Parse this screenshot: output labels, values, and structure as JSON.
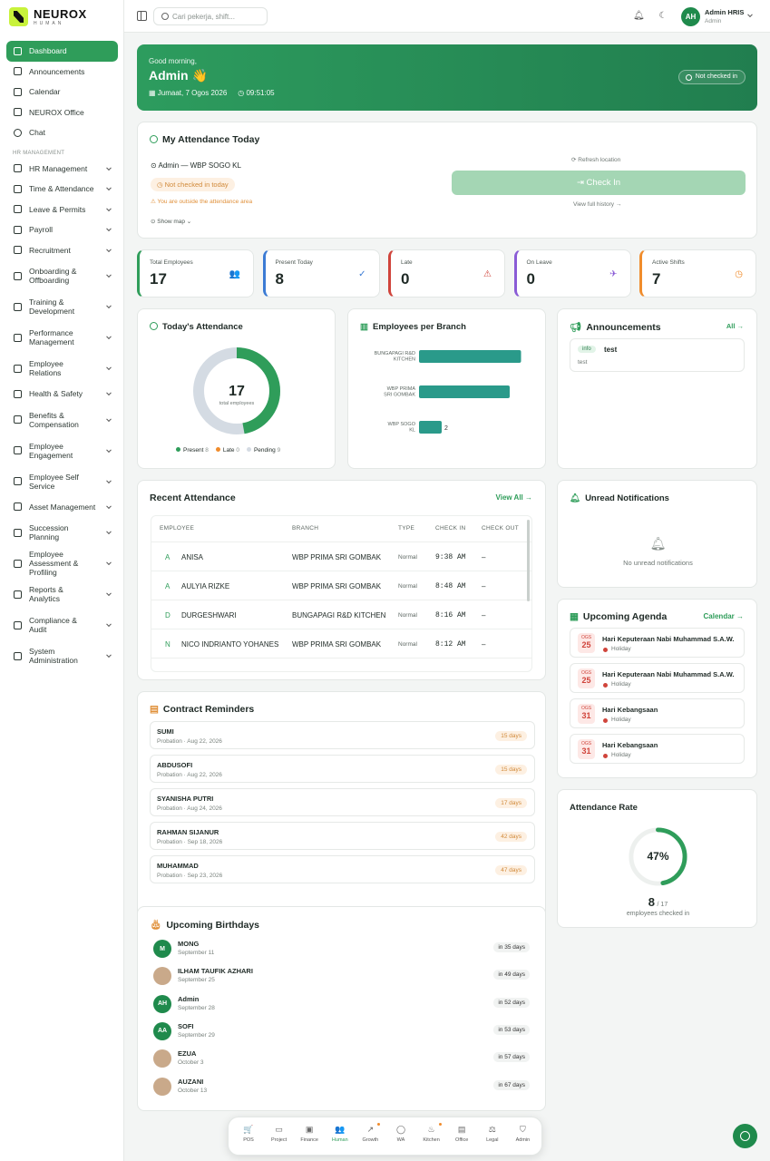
{
  "brand": {
    "name": "NEUROX",
    "sub": "HUMAN"
  },
  "sidebar": {
    "section_label": "HR MANAGEMENT",
    "top_items": [
      {
        "label": "Dashboard"
      },
      {
        "label": "Announcements"
      },
      {
        "label": "Calendar"
      },
      {
        "label": "NEUROX Office"
      },
      {
        "label": "Chat"
      }
    ],
    "items": [
      {
        "label": "HR Management"
      },
      {
        "label": "Time & Attendance"
      },
      {
        "label": "Leave & Permits"
      },
      {
        "label": "Payroll"
      },
      {
        "label": "Recruitment"
      },
      {
        "label": "Onboarding & Offboarding"
      },
      {
        "label": "Training & Development"
      },
      {
        "label": "Performance Management"
      },
      {
        "label": "Employee Relations"
      },
      {
        "label": "Health & Safety"
      },
      {
        "label": "Benefits & Compensation"
      },
      {
        "label": "Employee Engagement"
      },
      {
        "label": "Employee Self Service"
      },
      {
        "label": "Asset Management"
      },
      {
        "label": "Succession Planning"
      },
      {
        "label": "Employee Assessment & Profiling"
      },
      {
        "label": "Reports & Analytics"
      },
      {
        "label": "Compliance & Audit"
      },
      {
        "label": "System Administration"
      }
    ]
  },
  "topbar": {
    "search_placeholder": "Cari pekerja, shift...",
    "avatar_initials": "AH",
    "user_name": "Admin HRIS",
    "user_role": "Admin"
  },
  "hero": {
    "greeting": "Good morning,",
    "name": "Admin 👋",
    "date": "Jumaat, 7 Ogos 2026",
    "time": "09:51:05",
    "status": "Not checked in"
  },
  "attendance": {
    "title": "My Attendance Today",
    "location": "Admin — WBP SOGO KL",
    "status": "Not checked in today",
    "warning": "You are outside the attendance area",
    "show_map": "Show map",
    "refresh": "Refresh location",
    "check_in": "Check In",
    "history": "View full history →"
  },
  "stats": [
    {
      "label": "Total Employees",
      "value": "17",
      "color": "#2f9d5a"
    },
    {
      "label": "Present Today",
      "value": "8",
      "color": "#3b7bd4"
    },
    {
      "label": "Late",
      "value": "0",
      "color": "#d0443b"
    },
    {
      "label": "On Leave",
      "value": "0",
      "color": "#8a5cd6"
    },
    {
      "label": "Active Shifts",
      "value": "7",
      "color": "#f08c2c"
    }
  ],
  "todays_attendance": {
    "title": "Today's Attendance",
    "total": "17",
    "total_label": "total employees",
    "legend": [
      {
        "label": "Present",
        "value": "8",
        "color": "#2f9d5a"
      },
      {
        "label": "Late",
        "value": "0",
        "color": "#f08c2c"
      },
      {
        "label": "Pending",
        "value": "9",
        "color": "#d4dbe3"
      }
    ]
  },
  "chart_data": {
    "type": "bar",
    "title": "Employees per Branch",
    "orientation": "horizontal",
    "categories": [
      "BUNGAPAGI R&D KITCHEN",
      "WBP PRIMA SRI GOMBAK",
      "WBP SOGO KL"
    ],
    "values": [
      9,
      8,
      2
    ],
    "value_labels": [
      "",
      "",
      "2"
    ],
    "color": "#2a9a8a"
  },
  "announcements": {
    "title": "Announcements",
    "all_link": "All →",
    "items": [
      {
        "badge": "info",
        "title": "test",
        "body": "test"
      }
    ]
  },
  "recent": {
    "title": "Recent Attendance",
    "view_all": "View All →",
    "headers": [
      "EMPLOYEE",
      "BRANCH",
      "TYPE",
      "CHECK IN",
      "CHECK OUT"
    ],
    "rows": [
      {
        "initial": "A",
        "name": "ANISA",
        "branch": "WBP PRIMA SRI GOMBAK",
        "type": "Normal",
        "in": "9:38 AM",
        "out": "–"
      },
      {
        "initial": "A",
        "name": "AULYIA RIZKE",
        "branch": "WBP PRIMA SRI GOMBAK",
        "type": "Normal",
        "in": "8:48 AM",
        "out": "–"
      },
      {
        "initial": "D",
        "name": "DURGESHWARI",
        "branch": "BUNGAPAGI R&D KITCHEN",
        "type": "Normal",
        "in": "8:16 AM",
        "out": "–"
      },
      {
        "initial": "N",
        "name": "NICO INDRIANTO YOHANES",
        "branch": "WBP PRIMA SRI GOMBAK",
        "type": "Normal",
        "in": "8:12 AM",
        "out": "–"
      }
    ]
  },
  "notifications": {
    "title": "Unread Notifications",
    "empty": "No unread notifications"
  },
  "agenda": {
    "title": "Upcoming Agenda",
    "link": "Calendar →",
    "items": [
      {
        "month": "OGS",
        "day": "25",
        "title": "Hari Keputeraan Nabi Muhammad S.A.W.",
        "tag": "Holiday"
      },
      {
        "month": "OGS",
        "day": "25",
        "title": "Hari Keputeraan Nabi Muhammad S.A.W.",
        "tag": "Holiday"
      },
      {
        "month": "OGS",
        "day": "31",
        "title": "Hari Kebangsaan",
        "tag": "Holiday"
      },
      {
        "month": "OGS",
        "day": "31",
        "title": "Hari Kebangsaan",
        "tag": "Holiday"
      }
    ]
  },
  "contracts": {
    "title": "Contract Reminders",
    "items": [
      {
        "name": "SUMI",
        "meta": "Probation · Aug 22, 2026",
        "days": "15 days"
      },
      {
        "name": "ABDUSOFI",
        "meta": "Probation · Aug 22, 2026",
        "days": "15 days"
      },
      {
        "name": "SYANISHA PUTRI",
        "meta": "Probation · Aug 24, 2026",
        "days": "17 days"
      },
      {
        "name": "RAHMAN SIJANUR",
        "meta": "Probation · Sep 18, 2026",
        "days": "42 days"
      },
      {
        "name": "MUHAMMAD",
        "meta": "Probation · Sep 23, 2026",
        "days": "47 days"
      }
    ]
  },
  "rate": {
    "title": "Attendance Rate",
    "percent": "47%",
    "fraction": 0.47,
    "count": "8",
    "total": "/ 17",
    "sub": "employees checked in"
  },
  "birthdays": {
    "title": "Upcoming Birthdays",
    "items": [
      {
        "initials": "M",
        "name": "MONG",
        "date": "September 11",
        "in": "in 35 days"
      },
      {
        "initials": "",
        "name": "ILHAM TAUFIK AZHARI",
        "date": "September 25",
        "in": "in 49 days"
      },
      {
        "initials": "AH",
        "name": "Admin",
        "date": "September 28",
        "in": "in 52 days"
      },
      {
        "initials": "AA",
        "name": "SOFI",
        "date": "September 29",
        "in": "in 53 days"
      },
      {
        "initials": "",
        "name": "EZUA",
        "date": "October 3",
        "in": "in 57 days"
      },
      {
        "initials": "",
        "name": "AUZANI",
        "date": "October 13",
        "in": "in 67 days"
      }
    ]
  },
  "dock": [
    {
      "label": "POS",
      "glyph": "🛒"
    },
    {
      "label": "Project",
      "glyph": "▭"
    },
    {
      "label": "Finance",
      "glyph": "▣"
    },
    {
      "label": "Human",
      "glyph": "👥"
    },
    {
      "label": "Growth",
      "glyph": "↗"
    },
    {
      "label": "WA",
      "glyph": "◯"
    },
    {
      "label": "Kitchen",
      "glyph": "♨"
    },
    {
      "label": "Office",
      "glyph": "▤"
    },
    {
      "label": "Legal",
      "glyph": "⚖"
    },
    {
      "label": "Admin",
      "glyph": "⛉"
    }
  ]
}
